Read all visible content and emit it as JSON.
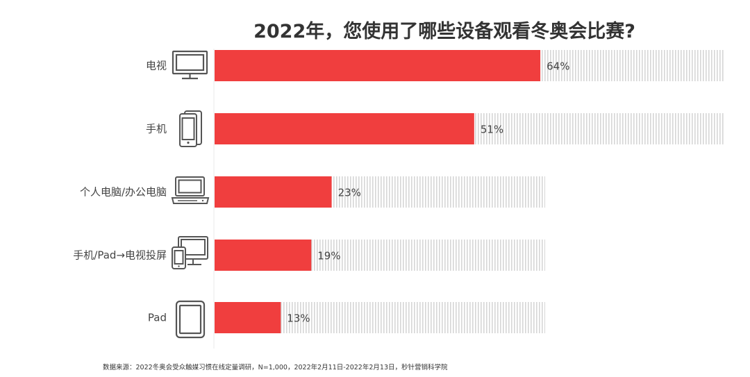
{
  "chart_data": {
    "type": "bar",
    "orientation": "horizontal",
    "title": "2022年，您使用了哪些设备观看冬奥会比赛?",
    "categories": [
      "电视",
      "手机",
      "个人电脑/办公电脑",
      "手机/Pad→电视投屏",
      "Pad"
    ],
    "values": [
      64,
      51,
      23,
      19,
      13
    ],
    "value_labels": [
      "64%",
      "51%",
      "23%",
      "19%",
      "13%"
    ],
    "icons": [
      "tv-icon",
      "phone-icon",
      "laptop-icon",
      "screen-cast-icon",
      "tablet-icon"
    ],
    "xlim": [
      0,
      100
    ],
    "grid": false,
    "legend": "none",
    "colors": {
      "bar": "#f03e3e",
      "track_stripe": "#d9d9d9",
      "icon": "#555555",
      "axis": "#e6e6e6"
    }
  },
  "footer": {
    "source": "数据来源：2022冬奥会受众触媒习惯在线定量调研，N=1,000，2022年2月11日-2022年2月13日，秒针营销科学院"
  }
}
